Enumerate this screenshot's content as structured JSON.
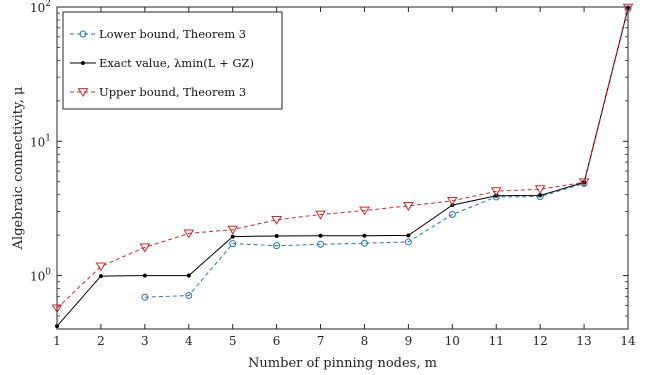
{
  "chart_data": {
    "type": "line",
    "title": "",
    "xlabel": "Number of pinning nodes, m",
    "ylabel": "Algebraic connectivity, μ",
    "x_ticks": [
      1,
      2,
      3,
      4,
      5,
      6,
      7,
      8,
      9,
      10,
      11,
      12,
      13,
      14
    ],
    "xlim": [
      1,
      14
    ],
    "ylim": [
      0.4,
      100
    ],
    "y_scale": "log",
    "y_ticks": [
      {
        "value": 1,
        "label": "10",
        "exp": "0"
      },
      {
        "value": 10,
        "label": "10",
        "exp": "1"
      },
      {
        "value": 100,
        "label": "10",
        "exp": "2"
      }
    ],
    "grid": false,
    "legend_position": "top-left",
    "series": [
      {
        "name": "Lower bound, Theorem 3",
        "color": "#1f77b4",
        "line": "dashed",
        "marker": "circle",
        "x": [
          3,
          4,
          5,
          6,
          7,
          8,
          9,
          10,
          11,
          12,
          13,
          14
        ],
        "y": [
          0.69,
          0.71,
          1.73,
          1.67,
          1.71,
          1.74,
          1.78,
          2.85,
          3.85,
          3.87,
          4.85,
          97
        ]
      },
      {
        "name": "Exact value, λmin(L + GZ)",
        "color": "#000000",
        "line": "solid",
        "marker": "dot",
        "x": [
          1,
          2,
          3,
          4,
          5,
          6,
          7,
          8,
          9,
          10,
          11,
          12,
          13,
          14
        ],
        "y": [
          0.42,
          0.99,
          1.0,
          1.0,
          1.95,
          1.97,
          1.98,
          1.98,
          1.99,
          3.35,
          3.93,
          3.95,
          4.95,
          98
        ]
      },
      {
        "name": "Upper bound, Theorem 3",
        "color": "#d62728",
        "line": "dashed",
        "marker": "triangle-down",
        "x": [
          1,
          2,
          3,
          4,
          5,
          6,
          7,
          8,
          9,
          10,
          11,
          12,
          13,
          14
        ],
        "y": [
          0.57,
          1.17,
          1.62,
          2.06,
          2.2,
          2.6,
          2.85,
          3.05,
          3.3,
          3.6,
          4.25,
          4.4,
          4.95,
          99
        ]
      }
    ]
  }
}
